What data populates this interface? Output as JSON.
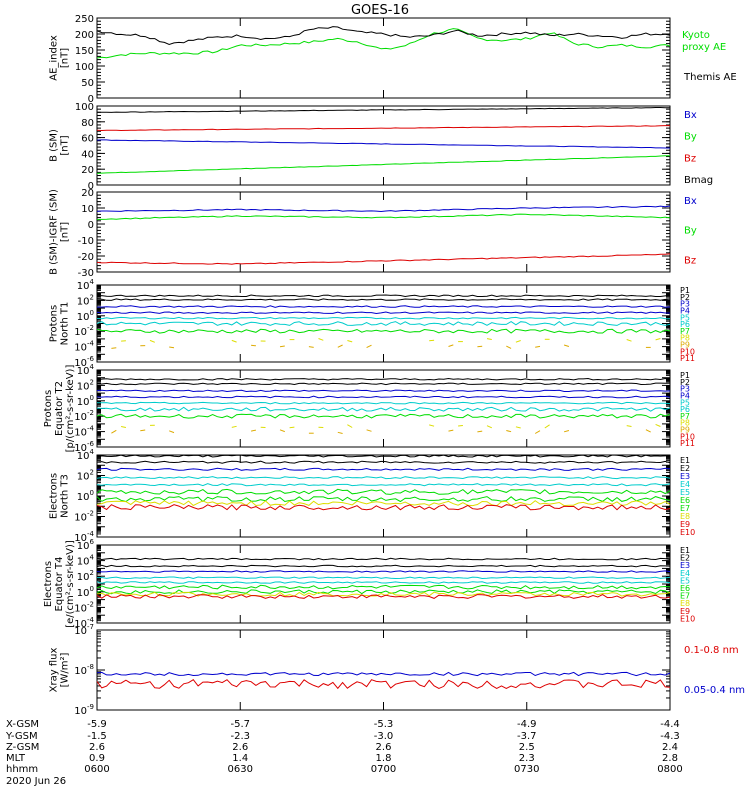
{
  "title": "GOES-16",
  "colors": {
    "black": "#000000",
    "green": "#00dd00",
    "red": "#dd0000",
    "blue": "#0000cc",
    "cyan": "#00cccc",
    "lime": "#66dd00",
    "yellow": "#dddd00",
    "orange": "#ddaa00",
    "darkred": "#990000"
  },
  "chart_data": [
    {
      "type": "line",
      "id": "ae",
      "ylabel": "AE_index\n[nT]",
      "ylim": [
        0,
        250
      ],
      "yscale": "linear",
      "yticks": [
        0,
        50,
        100,
        150,
        200,
        250
      ],
      "x": [
        "0600",
        "0605",
        "0610",
        "0615",
        "0620",
        "0625",
        "0630",
        "0635",
        "0640",
        "0645",
        "0650",
        "0655",
        "0700",
        "0705",
        "0710",
        "0715",
        "0720",
        "0725",
        "0730",
        "0735",
        "0740",
        "0745",
        "0750",
        "0755",
        "0800"
      ],
      "series": [
        {
          "name": "Kyoto\nproxy AE",
          "color": "#00dd00",
          "values": [
            125,
            135,
            140,
            140,
            140,
            145,
            165,
            165,
            170,
            175,
            185,
            175,
            150,
            165,
            200,
            215,
            185,
            180,
            185,
            205,
            170,
            160,
            165,
            160,
            165
          ]
        },
        {
          "name": "Themis AE",
          "color": "#000000",
          "values": [
            210,
            200,
            195,
            170,
            180,
            190,
            195,
            185,
            190,
            215,
            220,
            205,
            200,
            190,
            195,
            210,
            195,
            200,
            205,
            195,
            200,
            195,
            190,
            200,
            200
          ]
        }
      ]
    },
    {
      "type": "line",
      "id": "bsm",
      "ylabel": "B (SM)\n[nT]",
      "ylim": [
        0,
        100
      ],
      "yscale": "linear",
      "yticks": [
        0,
        20,
        40,
        60,
        80,
        100
      ],
      "x": [
        "0600",
        "0800"
      ],
      "series": [
        {
          "name": "Bx",
          "color": "#0000cc",
          "values": [
            57,
            47
          ]
        },
        {
          "name": "By",
          "color": "#00dd00",
          "values": [
            15,
            37
          ]
        },
        {
          "name": "Bz",
          "color": "#dd0000",
          "values": [
            69,
            75
          ]
        },
        {
          "name": "Bmag",
          "color": "#000000",
          "values": [
            92,
            98
          ]
        }
      ]
    },
    {
      "type": "line",
      "id": "bigrf",
      "ylabel": "B (SM)-IGRF (SM)\n[nT]",
      "ylim": [
        -30,
        20
      ],
      "yscale": "linear",
      "yticks": [
        -30,
        -20,
        -10,
        0,
        10,
        20
      ],
      "x": [
        "0600",
        "0630",
        "0700",
        "0730",
        "0800"
      ],
      "series": [
        {
          "name": "Bx",
          "color": "#0000cc",
          "values": [
            8,
            9,
            8,
            10,
            11
          ]
        },
        {
          "name": "By",
          "color": "#00dd00",
          "values": [
            3,
            5,
            4,
            6,
            4
          ]
        },
        {
          "name": "Bz",
          "color": "#dd0000",
          "values": [
            -24,
            -25,
            -23,
            -21,
            -19
          ]
        }
      ]
    },
    {
      "type": "line",
      "id": "protons_t1",
      "ylabel": "Protons\nNorth T1",
      "yscale": "log",
      "ylim": [
        1e-06,
        10000.0
      ],
      "yticks": [
        "10^-6",
        "10^-4",
        "10^-2",
        "10^0",
        "10^2",
        "10^4"
      ],
      "legend": [
        "P1",
        "P2",
        "P3",
        "P4",
        "P5",
        "P6",
        "P7",
        "P8",
        "P9",
        "P10",
        "P11"
      ],
      "series_log10": [
        2.6,
        2.1,
        1.2,
        0.4,
        -0.3,
        -1.0,
        -2.0,
        -3.2,
        -4.0,
        -4.5,
        -5.0
      ]
    },
    {
      "type": "line",
      "id": "protons_t2",
      "ylabel": "Protons\nEquator T2\n[p/(cm²-s-sr-keV)]",
      "yscale": "log",
      "ylim": [
        1e-06,
        10000.0
      ],
      "yticks": [
        "10^-6",
        "10^-4",
        "10^-2",
        "10^0",
        "10^2",
        "10^4"
      ],
      "legend": [
        "P1",
        "P2",
        "P3",
        "P4",
        "P5",
        "P6",
        "P7",
        "P8",
        "P9",
        "P10",
        "P11"
      ],
      "series_log10": [
        2.8,
        2.2,
        1.3,
        0.5,
        -0.3,
        -1.1,
        -2.0,
        -3.3,
        -4.0,
        -4.5,
        -5.0
      ]
    },
    {
      "type": "line",
      "id": "electrons_t3",
      "ylabel": "Electrons\nNorth T3",
      "yscale": "log",
      "ylim": [
        0.0001,
        10000.0
      ],
      "yticks": [
        "10^-4",
        "10^-2",
        "10^0",
        "10^2",
        "10^4"
      ],
      "legend": [
        "E1",
        "E2",
        "E3",
        "E4",
        "E5",
        "E6",
        "E7",
        "E8",
        "E9",
        "E10"
      ],
      "series_log10": [
        3.9,
        3.3,
        2.6,
        1.8,
        1.1,
        0.4,
        -0.3,
        -0.7,
        -1.1,
        -2.5
      ]
    },
    {
      "type": "line",
      "id": "electrons_t4",
      "ylabel": "Electrons\nEquator T4\n[e/(cm²-s-sr-keV)]",
      "yscale": "log",
      "ylim": [
        0.0001,
        1000000.0
      ],
      "yticks": [
        "10^-4",
        "10^-2",
        "10^0",
        "10^2",
        "10^4",
        "10^6"
      ],
      "legend": [
        "E1",
        "E2",
        "E3",
        "E4",
        "E5",
        "E6",
        "E7",
        "E8",
        "E9",
        "E10"
      ],
      "series_log10": [
        4.2,
        3.3,
        2.6,
        1.8,
        1.2,
        0.6,
        0.0,
        -0.3,
        -0.6,
        -2.5
      ]
    },
    {
      "type": "line",
      "id": "xray",
      "ylabel": "Xray flux\n[W/m²]",
      "yscale": "log",
      "ylim": [
        1e-09,
        1e-07
      ],
      "yticks": [
        "10^-9",
        "10^-8",
        "10^-7"
      ],
      "series": [
        {
          "name": "0.1-0.8 nm",
          "color": "#dd0000",
          "log10": -8.35
        },
        {
          "name": "0.05-0.4 nm",
          "color": "#0000cc",
          "log10": -8.1
        }
      ]
    }
  ],
  "x_axis": {
    "row_labels": [
      "X-GSM",
      "Y-GSM",
      "Z-GSM",
      "MLT",
      "hhmm",
      "2020 Jun 26"
    ],
    "columns": [
      [
        "-5.9",
        "-1.5",
        "2.6",
        "0.9",
        "0600"
      ],
      [
        "-5.7",
        "-2.3",
        "2.6",
        "1.4",
        "0630"
      ],
      [
        "-5.3",
        "-3.0",
        "2.6",
        "1.8",
        "0700"
      ],
      [
        "-4.9",
        "-3.7",
        "2.5",
        "2.3",
        "0730"
      ],
      [
        "-4.4",
        "-4.3",
        "2.4",
        "2.8",
        "0800"
      ]
    ]
  }
}
